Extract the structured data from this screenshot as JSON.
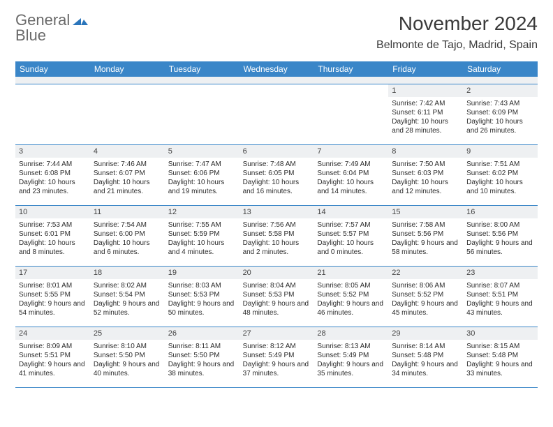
{
  "logo": {
    "line1": "General",
    "line2": "Blue"
  },
  "title": "November 2024",
  "location": "Belmonte de Tajo, Madrid, Spain",
  "colors": {
    "header_bg": "#3a86c8",
    "header_text": "#ffffff",
    "daynum_bg": "#eef0f2",
    "border": "#3a86c8",
    "text": "#2b2b2b",
    "logo_gray": "#6a6a6a",
    "logo_blue": "#2a75bb"
  },
  "day_names": [
    "Sunday",
    "Monday",
    "Tuesday",
    "Wednesday",
    "Thursday",
    "Friday",
    "Saturday"
  ],
  "weeks": [
    [
      null,
      null,
      null,
      null,
      null,
      {
        "n": "1",
        "sr": "Sunrise: 7:42 AM",
        "ss": "Sunset: 6:11 PM",
        "dl": "Daylight: 10 hours and 28 minutes."
      },
      {
        "n": "2",
        "sr": "Sunrise: 7:43 AM",
        "ss": "Sunset: 6:09 PM",
        "dl": "Daylight: 10 hours and 26 minutes."
      }
    ],
    [
      {
        "n": "3",
        "sr": "Sunrise: 7:44 AM",
        "ss": "Sunset: 6:08 PM",
        "dl": "Daylight: 10 hours and 23 minutes."
      },
      {
        "n": "4",
        "sr": "Sunrise: 7:46 AM",
        "ss": "Sunset: 6:07 PM",
        "dl": "Daylight: 10 hours and 21 minutes."
      },
      {
        "n": "5",
        "sr": "Sunrise: 7:47 AM",
        "ss": "Sunset: 6:06 PM",
        "dl": "Daylight: 10 hours and 19 minutes."
      },
      {
        "n": "6",
        "sr": "Sunrise: 7:48 AM",
        "ss": "Sunset: 6:05 PM",
        "dl": "Daylight: 10 hours and 16 minutes."
      },
      {
        "n": "7",
        "sr": "Sunrise: 7:49 AM",
        "ss": "Sunset: 6:04 PM",
        "dl": "Daylight: 10 hours and 14 minutes."
      },
      {
        "n": "8",
        "sr": "Sunrise: 7:50 AM",
        "ss": "Sunset: 6:03 PM",
        "dl": "Daylight: 10 hours and 12 minutes."
      },
      {
        "n": "9",
        "sr": "Sunrise: 7:51 AM",
        "ss": "Sunset: 6:02 PM",
        "dl": "Daylight: 10 hours and 10 minutes."
      }
    ],
    [
      {
        "n": "10",
        "sr": "Sunrise: 7:53 AM",
        "ss": "Sunset: 6:01 PM",
        "dl": "Daylight: 10 hours and 8 minutes."
      },
      {
        "n": "11",
        "sr": "Sunrise: 7:54 AM",
        "ss": "Sunset: 6:00 PM",
        "dl": "Daylight: 10 hours and 6 minutes."
      },
      {
        "n": "12",
        "sr": "Sunrise: 7:55 AM",
        "ss": "Sunset: 5:59 PM",
        "dl": "Daylight: 10 hours and 4 minutes."
      },
      {
        "n": "13",
        "sr": "Sunrise: 7:56 AM",
        "ss": "Sunset: 5:58 PM",
        "dl": "Daylight: 10 hours and 2 minutes."
      },
      {
        "n": "14",
        "sr": "Sunrise: 7:57 AM",
        "ss": "Sunset: 5:57 PM",
        "dl": "Daylight: 10 hours and 0 minutes."
      },
      {
        "n": "15",
        "sr": "Sunrise: 7:58 AM",
        "ss": "Sunset: 5:56 PM",
        "dl": "Daylight: 9 hours and 58 minutes."
      },
      {
        "n": "16",
        "sr": "Sunrise: 8:00 AM",
        "ss": "Sunset: 5:56 PM",
        "dl": "Daylight: 9 hours and 56 minutes."
      }
    ],
    [
      {
        "n": "17",
        "sr": "Sunrise: 8:01 AM",
        "ss": "Sunset: 5:55 PM",
        "dl": "Daylight: 9 hours and 54 minutes."
      },
      {
        "n": "18",
        "sr": "Sunrise: 8:02 AM",
        "ss": "Sunset: 5:54 PM",
        "dl": "Daylight: 9 hours and 52 minutes."
      },
      {
        "n": "19",
        "sr": "Sunrise: 8:03 AM",
        "ss": "Sunset: 5:53 PM",
        "dl": "Daylight: 9 hours and 50 minutes."
      },
      {
        "n": "20",
        "sr": "Sunrise: 8:04 AM",
        "ss": "Sunset: 5:53 PM",
        "dl": "Daylight: 9 hours and 48 minutes."
      },
      {
        "n": "21",
        "sr": "Sunrise: 8:05 AM",
        "ss": "Sunset: 5:52 PM",
        "dl": "Daylight: 9 hours and 46 minutes."
      },
      {
        "n": "22",
        "sr": "Sunrise: 8:06 AM",
        "ss": "Sunset: 5:52 PM",
        "dl": "Daylight: 9 hours and 45 minutes."
      },
      {
        "n": "23",
        "sr": "Sunrise: 8:07 AM",
        "ss": "Sunset: 5:51 PM",
        "dl": "Daylight: 9 hours and 43 minutes."
      }
    ],
    [
      {
        "n": "24",
        "sr": "Sunrise: 8:09 AM",
        "ss": "Sunset: 5:51 PM",
        "dl": "Daylight: 9 hours and 41 minutes."
      },
      {
        "n": "25",
        "sr": "Sunrise: 8:10 AM",
        "ss": "Sunset: 5:50 PM",
        "dl": "Daylight: 9 hours and 40 minutes."
      },
      {
        "n": "26",
        "sr": "Sunrise: 8:11 AM",
        "ss": "Sunset: 5:50 PM",
        "dl": "Daylight: 9 hours and 38 minutes."
      },
      {
        "n": "27",
        "sr": "Sunrise: 8:12 AM",
        "ss": "Sunset: 5:49 PM",
        "dl": "Daylight: 9 hours and 37 minutes."
      },
      {
        "n": "28",
        "sr": "Sunrise: 8:13 AM",
        "ss": "Sunset: 5:49 PM",
        "dl": "Daylight: 9 hours and 35 minutes."
      },
      {
        "n": "29",
        "sr": "Sunrise: 8:14 AM",
        "ss": "Sunset: 5:48 PM",
        "dl": "Daylight: 9 hours and 34 minutes."
      },
      {
        "n": "30",
        "sr": "Sunrise: 8:15 AM",
        "ss": "Sunset: 5:48 PM",
        "dl": "Daylight: 9 hours and 33 minutes."
      }
    ]
  ]
}
